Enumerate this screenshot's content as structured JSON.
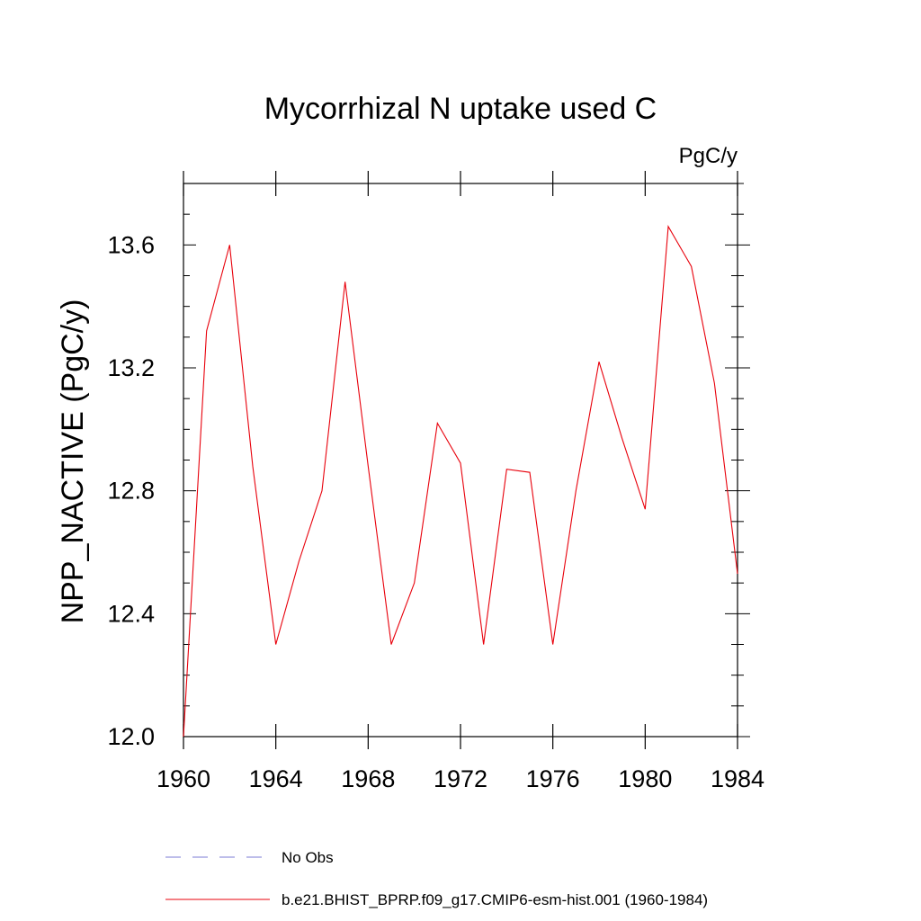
{
  "chart_data": {
    "type": "line",
    "title": "Mycorrhizal N uptake used C",
    "units": "PgC/y",
    "ylabel": "NPP_NACTIVE  (PgC/y)",
    "xlabel": "",
    "xlim": [
      1960,
      1984
    ],
    "ylim": [
      12.0,
      13.8
    ],
    "xticks": [
      1960,
      1964,
      1968,
      1972,
      1976,
      1980,
      1984
    ],
    "yticks": [
      12.0,
      12.4,
      12.8,
      13.2,
      13.6
    ],
    "xtick_labels": [
      "1960",
      "1964",
      "1968",
      "1972",
      "1976",
      "1980",
      "1984"
    ],
    "ytick_labels": [
      "12.0",
      "12.4",
      "12.8",
      "13.2",
      "13.6"
    ],
    "grid": false,
    "legend_position": "bottom",
    "series": [
      {
        "name": "b.e21.BHIST_BPRP.f09_g17.CMIP6-esm-hist.001 (1960-1984)",
        "color": "#e8000b",
        "style": "solid",
        "x": [
          1960,
          1961,
          1962,
          1963,
          1964,
          1965,
          1966,
          1967,
          1968,
          1969,
          1970,
          1971,
          1972,
          1973,
          1974,
          1975,
          1976,
          1977,
          1978,
          1979,
          1980,
          1981,
          1982,
          1983,
          1984
        ],
        "y": [
          12.0,
          13.32,
          13.6,
          12.88,
          12.3,
          12.57,
          12.8,
          13.48,
          12.88,
          12.3,
          12.5,
          13.02,
          12.89,
          12.3,
          12.87,
          12.86,
          12.3,
          12.8,
          13.22,
          12.97,
          12.74,
          13.66,
          13.53,
          13.15,
          12.53
        ]
      }
    ],
    "legend": [
      {
        "label": "No Obs",
        "color": "#7b7bd6",
        "style": "dashed"
      },
      {
        "label": "b.e21.BHIST_BPRP.f09_g17.CMIP6-esm-hist.001 (1960-1984)",
        "color": "#e8000b",
        "style": "solid"
      }
    ]
  }
}
